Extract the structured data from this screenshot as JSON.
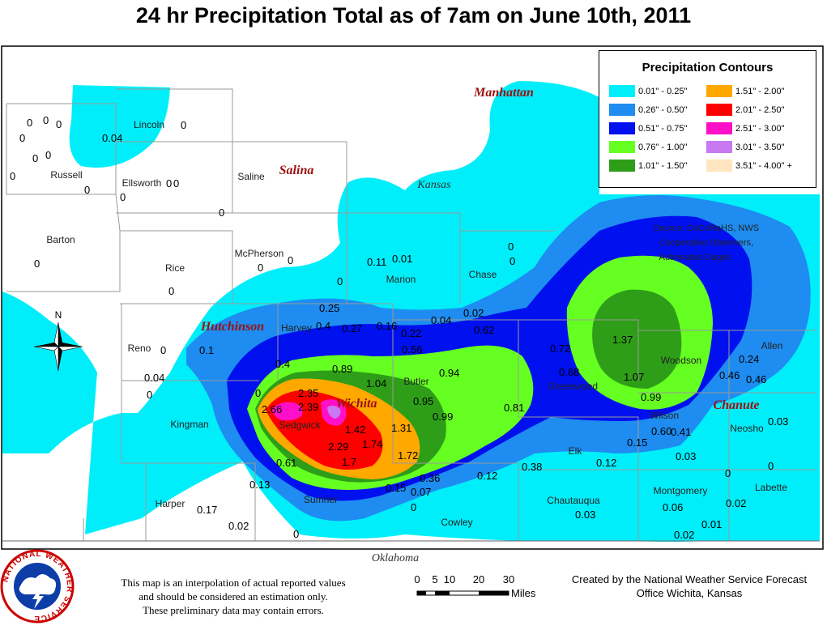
{
  "title": "24 hr Precipitation Total as of 7am on June 10th, 2011",
  "legend": {
    "title": "Precipitation Contours",
    "items": [
      {
        "label": "0.01\" - 0.25\"",
        "color": "#00eefa"
      },
      {
        "label": "0.26\" - 0.50\"",
        "color": "#1e8cf0"
      },
      {
        "label": "0.51\" - 0.75\"",
        "color": "#0010ee"
      },
      {
        "label": "0.76\" - 1.00\"",
        "color": "#66ff22"
      },
      {
        "label": "1.01\" - 1.50\"",
        "color": "#2e9e18"
      },
      {
        "label": "1.51\" - 2.00\"",
        "color": "#ffa800"
      },
      {
        "label": "2.01\" - 2.50\"",
        "color": "#ff0000"
      },
      {
        "label": "2.51\" - 3.00\"",
        "color": "#ff10c8"
      },
      {
        "label": "3.01\" - 3.50\"",
        "color": "#c878f0"
      },
      {
        "label": "3.51\" - 4.00\" +",
        "color": "#ffe6c0"
      }
    ]
  },
  "cities": [
    "Manhattan",
    "Salina",
    "Hutchinson",
    "Wichita",
    "Chanute"
  ],
  "states": [
    "Kansas",
    "Oklahoma"
  ],
  "counties": [
    "Russell",
    "Lincoln",
    "Ellsworth",
    "Saline",
    "Barton",
    "Rice",
    "McPherson",
    "Marion",
    "Chase",
    "Reno",
    "Harvey",
    "Butler",
    "Greenwood",
    "Woodson",
    "Allen",
    "Kingman",
    "Sedgwick",
    "Wilson",
    "Neosho",
    "Elk",
    "Harper",
    "Sumner",
    "Cowley",
    "Chautauqua",
    "Montgomery",
    "Labette"
  ],
  "values": [
    "0",
    "0",
    "0",
    "0",
    "0",
    "0",
    "0",
    "0.04",
    "0",
    "0",
    "0",
    "0",
    "0",
    "0",
    "0",
    "0",
    "0",
    "0",
    "0",
    "0.11",
    "0.01",
    "0",
    "0",
    "0",
    "0.25",
    "0.4",
    "0.27",
    "0.16",
    "0.22",
    "0.04",
    "0.02",
    "0.62",
    "0.56",
    "1.37",
    "0.72",
    "0.68",
    "1.07",
    "0.24",
    "0.46",
    "0.46",
    "0.99",
    "0.1",
    "0.04",
    "0",
    "0.4",
    "0.89",
    "1.04",
    "0.94",
    "0",
    "2.35",
    "2.66",
    "2.39",
    "0.95",
    "0.99",
    "0.81",
    "1.42",
    "1.31",
    "2.29",
    "1.74",
    "1.7",
    "1.72",
    "0.61",
    "0.36",
    "0.15",
    "0.07",
    "0.13",
    "0.17",
    "0.02",
    "0",
    "0",
    "0.12",
    "0.38",
    "0.12",
    "0.03",
    "0.15",
    "0.60",
    "0.41",
    "0.03",
    "0.03",
    "0",
    "0",
    "0.06",
    "0.02",
    "0.01",
    "0.02",
    "0"
  ],
  "source": [
    "Source: CoCoRaHS, NWS",
    "Cooperative Observers,",
    "Automated Gages"
  ],
  "compass": "N",
  "disclaimer": [
    "This map is an interpolation of actual reported values",
    "and should be considered an estimation only.",
    "These preliminary data may contain errors."
  ],
  "scale": {
    "ticks": [
      "0",
      "5",
      "10",
      "20",
      "30"
    ],
    "unit": "Miles"
  },
  "credit": [
    "Created by the National Weather Service Forecast",
    "Office Wichita, Kansas"
  ],
  "logo_text": "NATIONAL WEATHER SERVICE"
}
